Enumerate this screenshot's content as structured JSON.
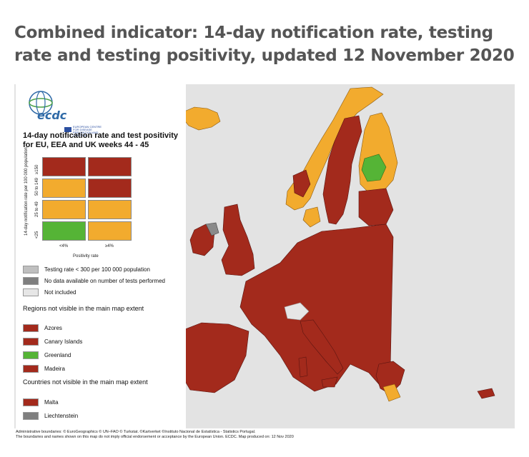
{
  "headline": "Combined indicator: 14-day notification rate, testing rate and testing positivity, updated 12 November 2020",
  "logo": {
    "text": "ecdc",
    "subtitle": "EUROPEAN CENTRE FOR DISEASE PREVENTION AND CONTROL"
  },
  "legend": {
    "title": "14-day notification rate and test positivity for EU, EEA and UK weeks 44 - 45",
    "y_axis_title": "14-day notification rate per 100 000 population",
    "y_categories": [
      "≥150",
      "50 to 149",
      "25 to 49",
      "<25"
    ],
    "x_axis_title": "Positivity rate",
    "x_categories": [
      "<4%",
      "≥4%"
    ],
    "matrix_colors": [
      [
        "#a32a1c",
        "#a32a1c"
      ],
      [
        "#f2ab2e",
        "#a32a1c"
      ],
      [
        "#f2ab2e",
        "#f2ab2e"
      ],
      [
        "#55b436",
        "#f2ab2e"
      ]
    ],
    "extra_items": [
      {
        "label": "Testing rate < 300 per 100 000 population",
        "color": "#bfbfbf"
      },
      {
        "label": "No data available on number of tests performed",
        "color": "#7f7f7f"
      },
      {
        "label": "Not included",
        "color": "#e6e6e6"
      }
    ],
    "regions_heading": "Regions not visible in the main map extent",
    "regions": [
      {
        "label": "Azores",
        "color": "#a32a1c"
      },
      {
        "label": "Canary Islands",
        "color": "#a32a1c"
      },
      {
        "label": "Greenland",
        "color": "#55b436"
      },
      {
        "label": "Madeira",
        "color": "#a32a1c"
      }
    ],
    "countries_heading": "Countries not visible in the main map extent",
    "countries": [
      {
        "label": "Malta",
        "color": "#a32a1c"
      },
      {
        "label": "Liechtenstein",
        "color": "#7f7f7f"
      }
    ]
  },
  "colors": {
    "red": "#a32a1c",
    "orange": "#f2ab2e",
    "green": "#55b436",
    "grey": "#8a8a8a",
    "background": "#e3e3e3"
  },
  "footer": {
    "line1": "Administrative boundaries: © EuroGeographics © UN–FAO © Turkstat. ©Kartverket ©Instituto Nacional de Estatística - Statistics Portugal.",
    "line2": "The boundaries and names shown on this map do not imply official endorsement or acceptance by the European Union. ECDC. Map produced on: 12 Nov 2020"
  }
}
